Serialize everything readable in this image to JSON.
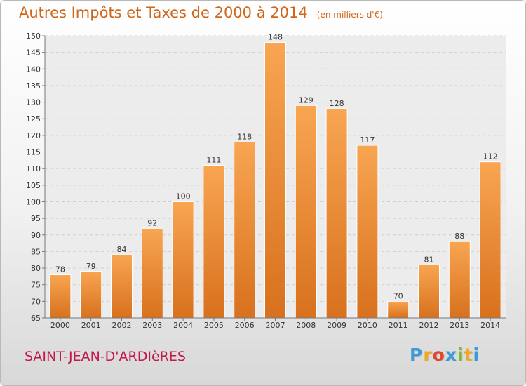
{
  "title": "Autres Impôts et Taxes de 2000 à 2014",
  "subtitle": "(en milliers d'€)",
  "commune": "SAINT-JEAN-D'ARDIèRES",
  "logo": {
    "letters": [
      "P",
      "r",
      "o",
      "x",
      "i",
      "t",
      "i"
    ],
    "colors": [
      "#3a9bd8",
      "#f0a820",
      "#e2462e",
      "#3a9bd8",
      "#7cbb2c",
      "#f0a820",
      "#3a9bd8"
    ]
  },
  "colors": {
    "bar_light": "#f8a552",
    "bar_dark": "#d8711d",
    "accent_text": "#d0661a",
    "commune_text": "#c2184a"
  },
  "chart_data": {
    "type": "bar",
    "categories": [
      "2000",
      "2001",
      "2002",
      "2003",
      "2004",
      "2005",
      "2006",
      "2007",
      "2008",
      "2009",
      "2010",
      "2011",
      "2012",
      "2013",
      "2014"
    ],
    "values": [
      78,
      79,
      84,
      92,
      100,
      111,
      118,
      148,
      129,
      128,
      117,
      70,
      81,
      88,
      112
    ],
    "ylim": [
      65,
      150
    ],
    "yticks": [
      65,
      70,
      75,
      80,
      85,
      90,
      95,
      100,
      105,
      110,
      115,
      120,
      125,
      130,
      135,
      140,
      145,
      150
    ],
    "grid": true,
    "data_labels": true
  }
}
